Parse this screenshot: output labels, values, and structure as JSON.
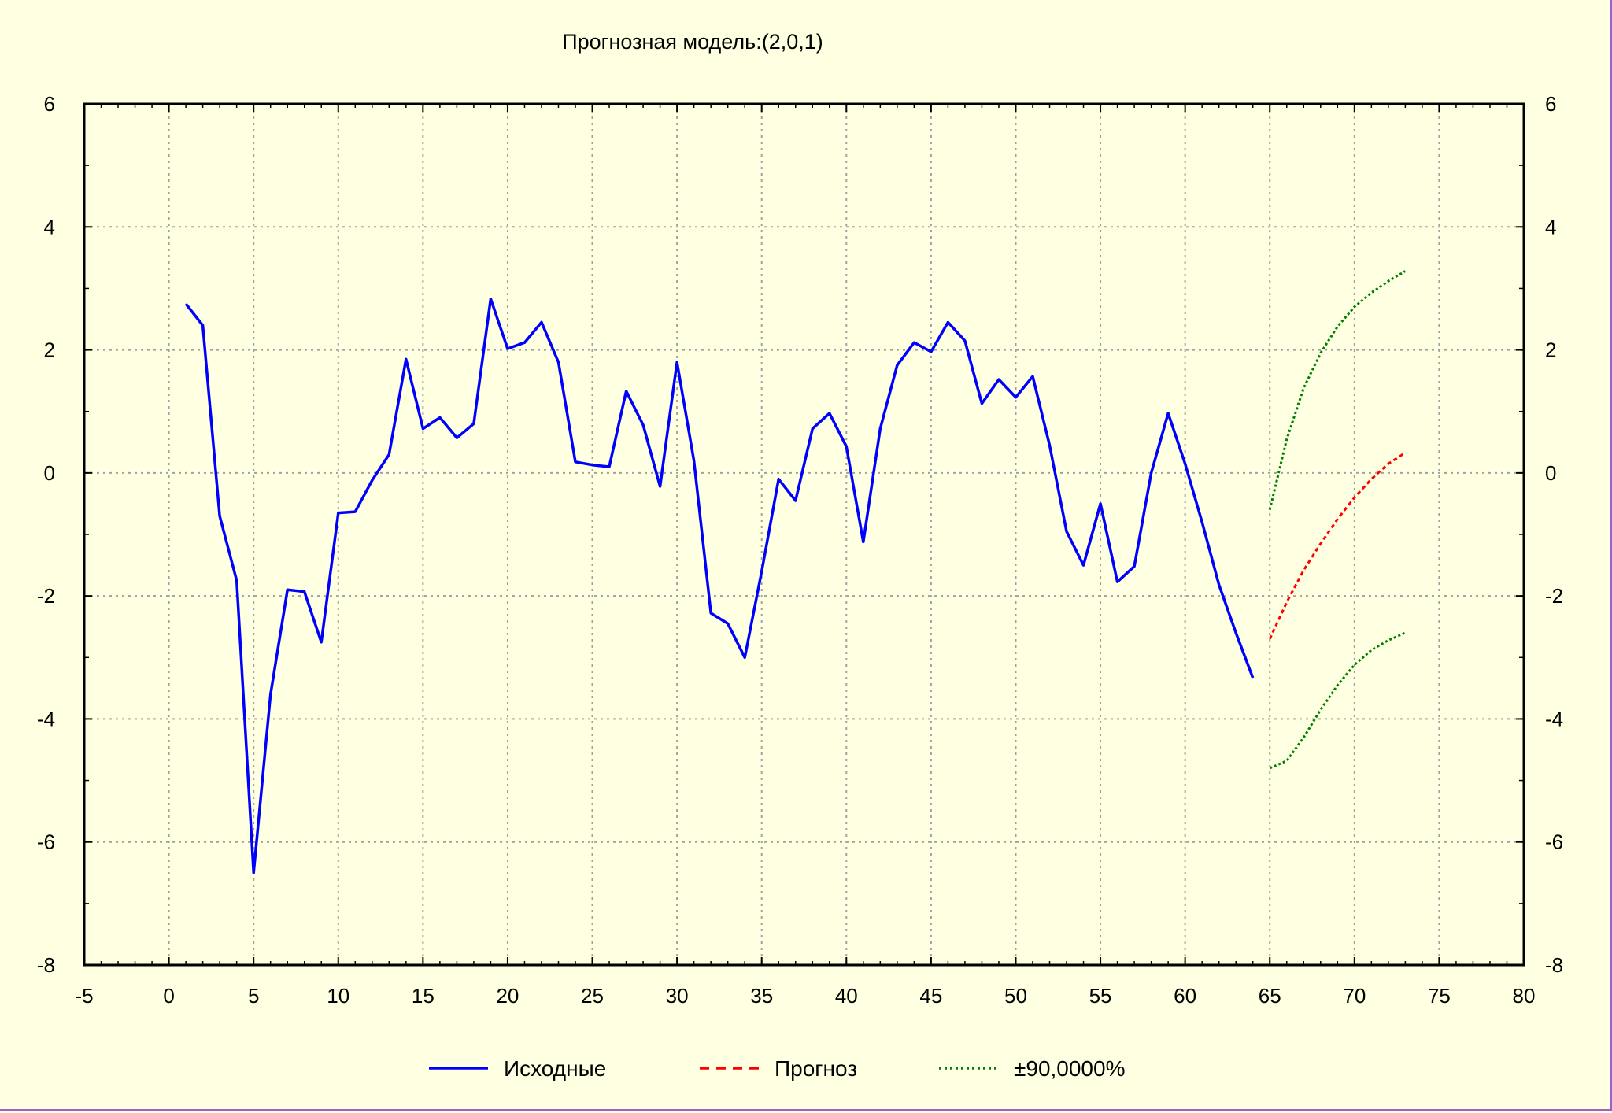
{
  "chart_data": {
    "type": "line",
    "title": "Прогнозная модель:(2,0,1)",
    "xlabel": "",
    "ylabel": "",
    "xlim": [
      -5,
      80
    ],
    "ylim": [
      -8,
      6
    ],
    "grid": true,
    "x_ticks": [
      -5,
      0,
      5,
      10,
      15,
      20,
      25,
      30,
      35,
      40,
      45,
      50,
      55,
      60,
      65,
      70,
      75,
      80
    ],
    "x_tick_labels": [
      "-5",
      "0",
      "5",
      "10",
      "15",
      "20",
      "25",
      "30",
      "35",
      "40",
      "45",
      "50",
      "55",
      "60",
      "65",
      "70",
      "75",
      "80"
    ],
    "y_ticks": [
      -8,
      -6,
      -4,
      -2,
      0,
      2,
      4,
      6
    ],
    "y_tick_labels": [
      "-8",
      "-6",
      "-4",
      "-2",
      "0",
      "2",
      "4",
      "6"
    ],
    "legend_position": "bottom",
    "series": [
      {
        "name": "Исходные",
        "color": "#0000ff",
        "style": "solid",
        "x": [
          1,
          2,
          3,
          4,
          5,
          6,
          7,
          8,
          9,
          10,
          11,
          12,
          13,
          14,
          15,
          16,
          17,
          18,
          19,
          20,
          21,
          22,
          23,
          24,
          25,
          26,
          27,
          28,
          29,
          30,
          31,
          32,
          33,
          34,
          35,
          36,
          37,
          38,
          39,
          40,
          41,
          42,
          43,
          44,
          45,
          46,
          47,
          48,
          49,
          50,
          51,
          52,
          53,
          54,
          55,
          56,
          57,
          58,
          59,
          60,
          61,
          62,
          63,
          64
        ],
        "values": [
          2.75,
          2.4,
          -0.7,
          -1.75,
          -6.5,
          -3.6,
          -1.9,
          -1.93,
          -2.75,
          -0.65,
          -0.63,
          -0.12,
          0.3,
          1.85,
          0.72,
          0.9,
          0.57,
          0.8,
          2.83,
          2.02,
          2.12,
          2.45,
          1.8,
          0.18,
          0.13,
          0.1,
          1.33,
          0.78,
          -0.22,
          1.8,
          0.2,
          -2.28,
          -2.45,
          -3.0,
          -1.6,
          -0.1,
          -0.45,
          0.72,
          0.97,
          0.43,
          -1.12,
          0.72,
          1.75,
          2.12,
          1.97,
          2.45,
          2.15,
          1.13,
          1.52,
          1.23,
          1.57,
          0.45,
          -0.95,
          -1.5,
          -0.5,
          -1.77,
          -1.52,
          0.0,
          0.97,
          0.15,
          -0.8,
          -1.82,
          -2.6,
          -3.33
        ]
      },
      {
        "name": "Прогноз",
        "color": "#ff0000",
        "style": "dashed",
        "x": [
          65,
          66,
          67,
          68,
          69,
          70,
          71,
          72,
          73
        ],
        "values": [
          -2.7,
          -2.1,
          -1.58,
          -1.15,
          -0.75,
          -0.4,
          -0.1,
          0.15,
          0.33
        ]
      },
      {
        "name": "±90,0000%",
        "color": "#008000",
        "style": "dotted",
        "x": [
          65,
          66,
          67,
          68,
          69,
          70,
          71,
          72,
          73
        ],
        "values": [
          -0.6,
          0.55,
          1.38,
          1.95,
          2.38,
          2.7,
          2.93,
          3.12,
          3.28
        ]
      },
      {
        "name": "",
        "color": "#008000",
        "style": "dotted",
        "x": [
          65,
          66,
          67,
          68,
          69,
          70,
          71,
          72,
          73
        ],
        "values": [
          -4.8,
          -4.68,
          -4.3,
          -3.85,
          -3.45,
          -3.12,
          -2.88,
          -2.72,
          -2.6
        ]
      }
    ]
  },
  "legend": [
    {
      "label": "Исходные",
      "color": "#0000ff",
      "style": "solid"
    },
    {
      "label": "Прогноз",
      "color": "#ff0000",
      "style": "dashed"
    },
    {
      "label": "±90,0000%",
      "color": "#008000",
      "style": "dotted"
    }
  ]
}
